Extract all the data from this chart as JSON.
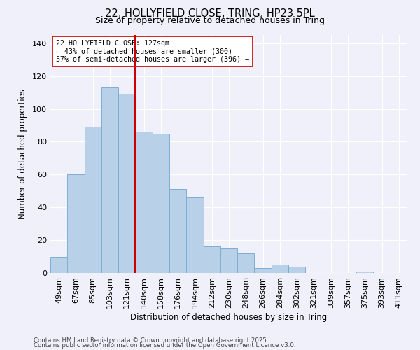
{
  "title": "22, HOLLYFIELD CLOSE, TRING, HP23 5PL",
  "subtitle": "Size of property relative to detached houses in Tring",
  "xlabel": "Distribution of detached houses by size in Tring",
  "ylabel": "Number of detached properties",
  "bar_color": "#b8d0e8",
  "bar_edge_color": "#7eadd4",
  "categories": [
    "49sqm",
    "67sqm",
    "85sqm",
    "103sqm",
    "121sqm",
    "140sqm",
    "158sqm",
    "176sqm",
    "194sqm",
    "212sqm",
    "230sqm",
    "248sqm",
    "266sqm",
    "284sqm",
    "302sqm",
    "321sqm",
    "339sqm",
    "357sqm",
    "375sqm",
    "393sqm",
    "411sqm"
  ],
  "values": [
    10,
    60,
    89,
    113,
    109,
    86,
    85,
    51,
    46,
    16,
    15,
    12,
    3,
    5,
    4,
    0,
    0,
    0,
    1,
    0,
    0
  ],
  "vline_x": 4.5,
  "vline_color": "#cc0000",
  "annotation_text": "22 HOLLYFIELD CLOSE: 127sqm\n← 43% of detached houses are smaller (300)\n57% of semi-detached houses are larger (396) →",
  "annotation_box_color": "#ffffff",
  "annotation_box_edge": "#cc0000",
  "ylim": [
    0,
    145
  ],
  "yticks": [
    0,
    20,
    40,
    60,
    80,
    100,
    120,
    140
  ],
  "footer1": "Contains HM Land Registry data © Crown copyright and database right 2025.",
  "footer2": "Contains public sector information licensed under the Open Government Licence v3.0.",
  "background_color": "#f0f0fa",
  "grid_color": "#ffffff"
}
